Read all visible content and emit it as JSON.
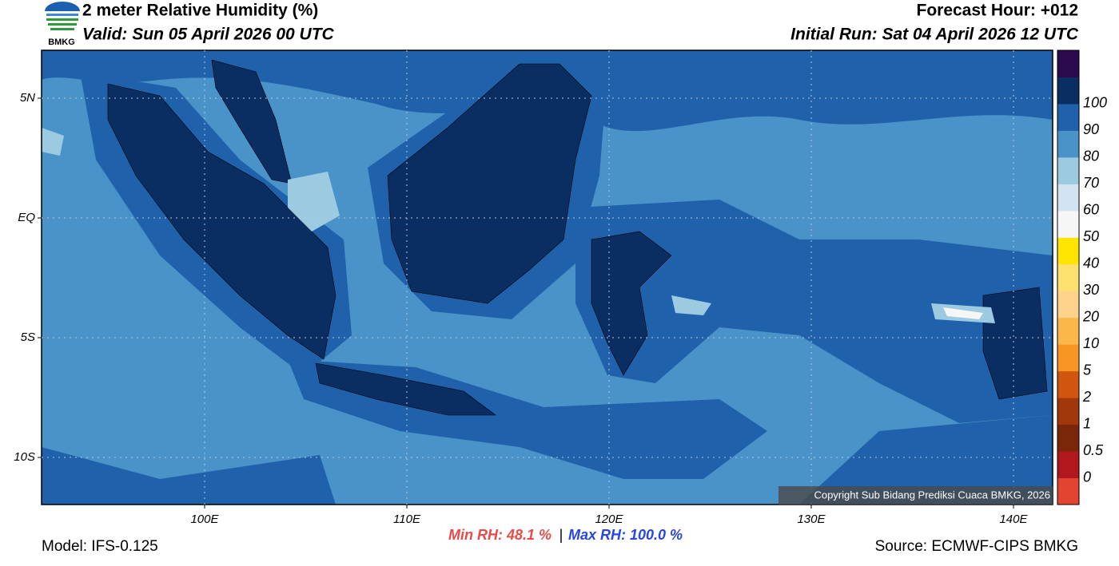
{
  "header": {
    "title": "2 meter Relative Humidity (%)",
    "valid": "Valid: Sun 05 April 2026 00 UTC",
    "forecast_hour": "Forecast Hour: +012",
    "initial_run": "Initial Run: Sat 04 April 2026 12 UTC",
    "logo": "BMKG"
  },
  "map": {
    "lat_labels": [
      "5N",
      "EQ",
      "5S",
      "10S"
    ],
    "lon_labels": [
      "100E",
      "110E",
      "120E",
      "130E",
      "140E"
    ],
    "copyright": "Copyright Sub Bidang Prediksi Cuaca BMKG, 2026"
  },
  "colorbar": {
    "levels": [
      0,
      0.5,
      1,
      2,
      5,
      10,
      20,
      30,
      40,
      50,
      60,
      70,
      80,
      90,
      100
    ],
    "colors": [
      "#e34431",
      "#b0181e",
      "#7a2608",
      "#a1370b",
      "#d1550f",
      "#f69522",
      "#fcb74a",
      "#fdd28a",
      "#fde16e",
      "#fde500",
      "#f6f6f6",
      "#d3e4f1",
      "#9ccae1",
      "#4a93c9",
      "#1f62ab",
      "#0a2d62",
      "#2d0a4d"
    ]
  },
  "footer": {
    "min_rh": "Min RH:  48.1 %",
    "separator": "|",
    "max_rh": "Max RH: 100.0 %",
    "model": "Model: IFS-0.125",
    "source": "Source: ECMWF-CIPS BMKG"
  }
}
